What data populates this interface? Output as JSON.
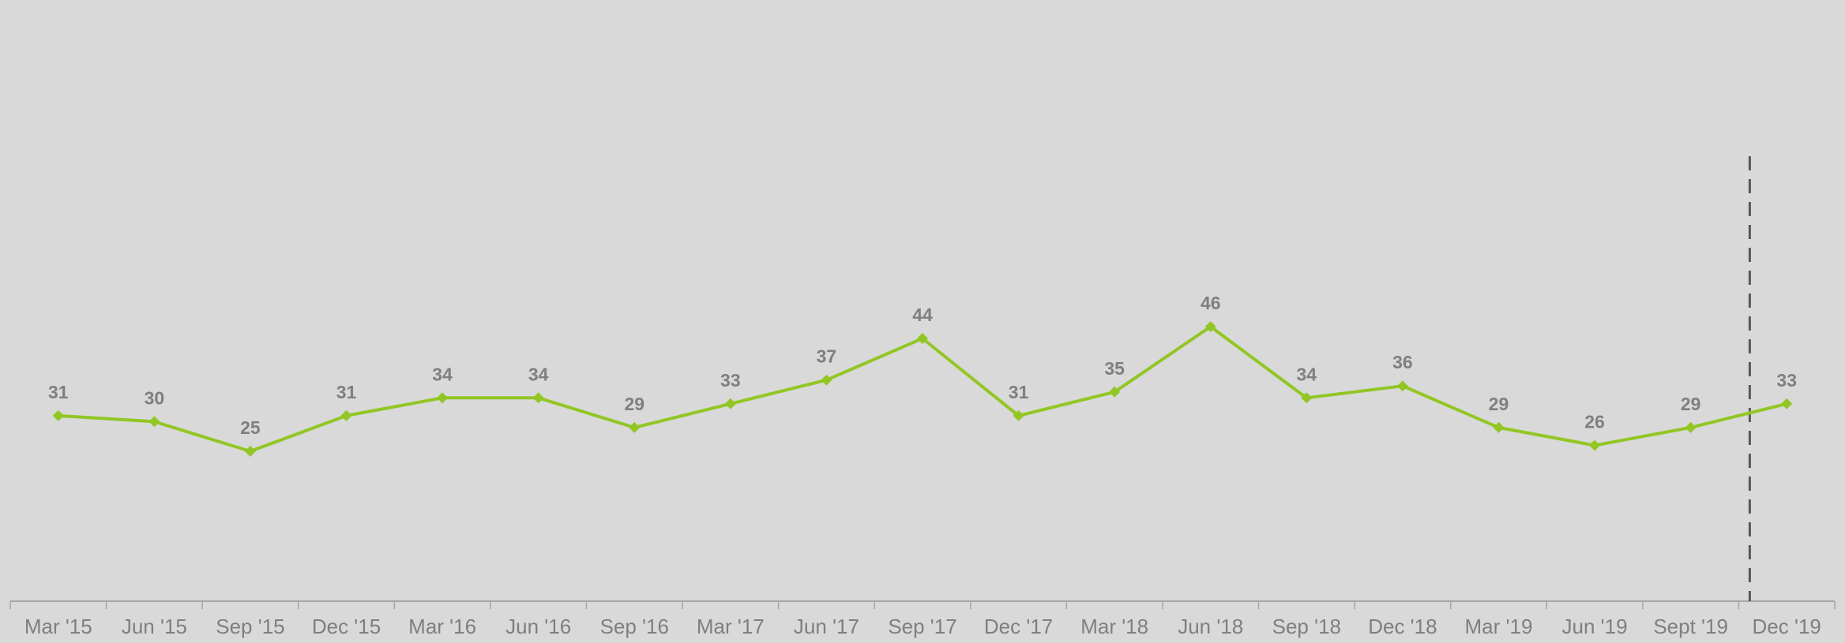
{
  "colors": {
    "background": "#d9d9d9",
    "series_line": "#92c624",
    "labels": "#7f7f7f",
    "axis": "#a6a6a6",
    "marker_line": "#595959"
  },
  "chart_data": {
    "type": "line",
    "title": "",
    "xlabel": "",
    "ylabel": "",
    "ylim": [
      0,
      70
    ],
    "grid": false,
    "legend": "none",
    "categories": [
      "Mar '15",
      "Jun '15",
      "Sep '15",
      "Dec '15",
      "Mar '16",
      "Jun '16",
      "Sep '16",
      "Mar '17",
      "Jun '17",
      "Sep '17",
      "Dec '17",
      "Mar '18",
      "Jun '18",
      "Sep '18",
      "Dec '18",
      "Mar '19",
      "Jun '19",
      "Sept '19",
      "Dec '19"
    ],
    "series": [
      {
        "values": [
          31,
          30,
          25,
          31,
          34,
          34,
          29,
          33,
          37,
          44,
          31,
          35,
          46,
          34,
          36,
          29,
          26,
          29,
          33
        ],
        "marker": "diamond",
        "data_labels": true
      }
    ],
    "vertical_reference_line": {
      "between_categories": [
        "Sept '19",
        "Dec '19"
      ],
      "style": "dashed"
    }
  }
}
